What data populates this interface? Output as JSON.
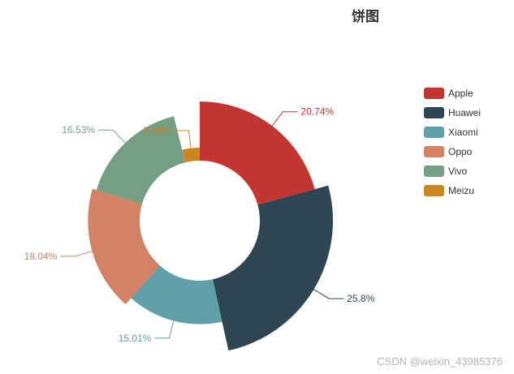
{
  "chart_data": {
    "type": "pie",
    "variant": "rose",
    "title": "饼图",
    "categories": [
      "Apple",
      "Huawei",
      "Xiaomi",
      "Oppo",
      "Vivo",
      "Meizu"
    ],
    "values": [
      20.74,
      25.8,
      15.01,
      18.04,
      16.53,
      3.88
    ],
    "labels": [
      "20.74%",
      "25.8%",
      "15.01%",
      "18.04%",
      "16.53%",
      "3.88%"
    ],
    "colors": [
      "#c23531",
      "#2f4554",
      "#61a0a8",
      "#d48265",
      "#749f83",
      "#ca8622"
    ],
    "legend_position": "right"
  },
  "watermark": "CSDN @weixin_43985376"
}
